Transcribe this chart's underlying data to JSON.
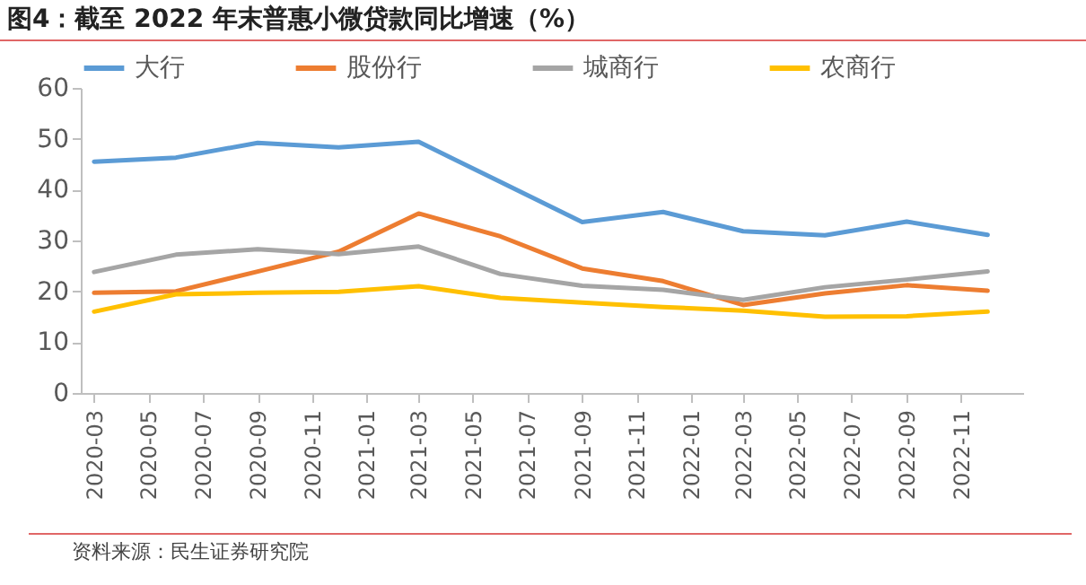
{
  "chart_data": {
    "type": "line",
    "title": "图4：截至 2022 年末普惠小微贷款同比增速（%）",
    "x": [
      "2020-03",
      "2020-06",
      "2020-09",
      "2020-12",
      "2021-03",
      "2021-06",
      "2021-09",
      "2021-12",
      "2022-03",
      "2022-06",
      "2022-09",
      "2022-12"
    ],
    "series": [
      {
        "name": "大行",
        "color": "#5b9bd5",
        "values": [
          45.5,
          46.3,
          49.2,
          48.3,
          49.4,
          41.5,
          33.6,
          35.6,
          31.8,
          31.0,
          33.7,
          31.1
        ]
      },
      {
        "name": "股份行",
        "color": "#ed7d31",
        "values": [
          19.7,
          20.0,
          23.9,
          27.8,
          35.3,
          30.8,
          24.5,
          22.0,
          17.3,
          19.6,
          21.2,
          20.1
        ]
      },
      {
        "name": "城商行",
        "color": "#a5a5a5",
        "values": [
          23.8,
          27.2,
          28.3,
          27.3,
          28.8,
          23.4,
          21.1,
          20.3,
          18.3,
          20.8,
          22.3,
          23.9
        ]
      },
      {
        "name": "农商行",
        "color": "#ffc000",
        "values": [
          16.0,
          19.4,
          19.7,
          19.9,
          21.0,
          18.7,
          17.8,
          16.9,
          16.2,
          15.0,
          15.1,
          16.0
        ]
      }
    ],
    "xlim": [
      "2020-02-15",
      "2023-01-10"
    ],
    "xticks": [
      "2020-03",
      "2020-05",
      "2020-07",
      "2020-09",
      "2020-11",
      "2021-01",
      "2021-03",
      "2021-05",
      "2021-07",
      "2021-09",
      "2021-11",
      "2022-01",
      "2022-03",
      "2022-05",
      "2022-07",
      "2022-09",
      "2022-11"
    ],
    "ylim": [
      0,
      60
    ],
    "yticks": [
      0,
      10,
      20,
      30,
      40,
      50,
      60
    ],
    "grid": false,
    "legend": "top",
    "marker": "none",
    "line_style": "solid",
    "annotations": [
      "资料来源：民生证券研究院"
    ]
  }
}
